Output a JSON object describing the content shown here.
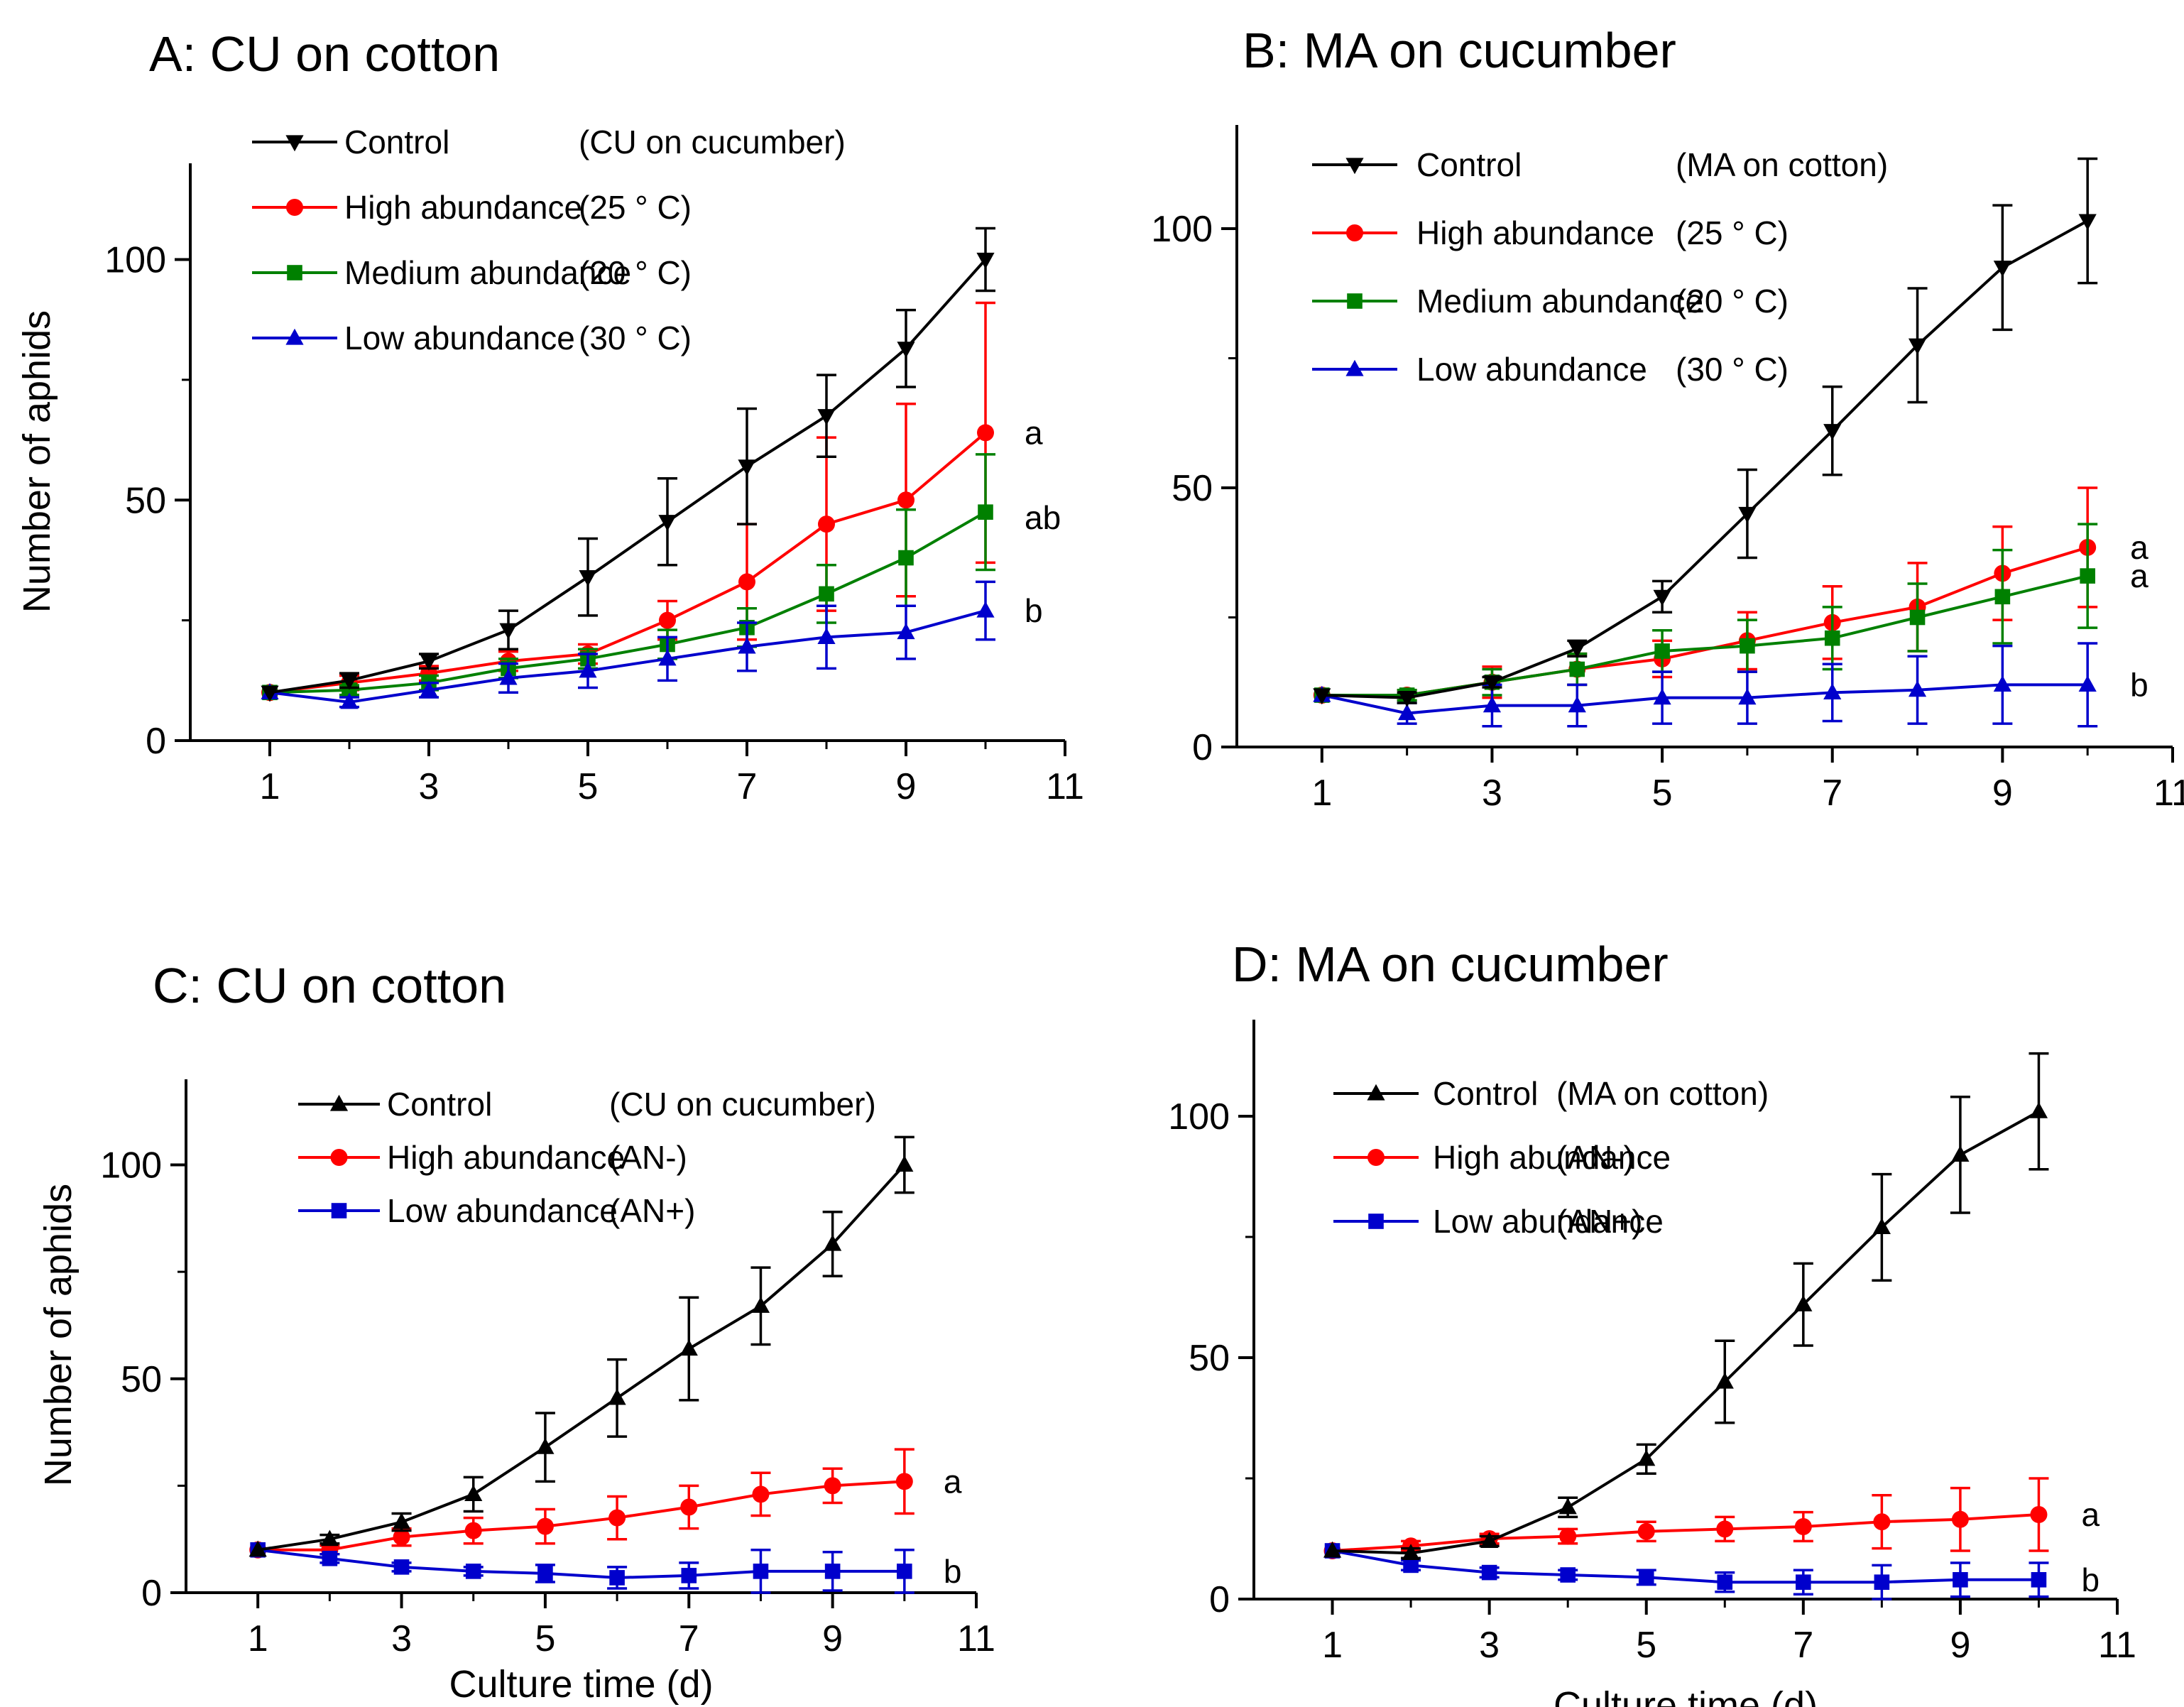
{
  "chart_data": [
    {
      "type": "line",
      "title": "A: CU on cotton",
      "xlabel": "",
      "ylabel": "Number of aphids",
      "xlim": [
        0,
        11
      ],
      "ylim": [
        0,
        120
      ],
      "xticks": [
        "1",
        "3",
        "5",
        "7",
        "9",
        "11"
      ],
      "yticks": [
        "0",
        "50",
        "100"
      ],
      "legend_position": "top-left",
      "x": [
        1,
        2,
        3,
        4,
        5,
        6,
        7,
        8,
        9,
        10
      ],
      "series": [
        {
          "name": "Control",
          "condition": "(CU on cucumber)",
          "color": "#000000",
          "marker": "triangle-down",
          "values": [
            10,
            12.5,
            16.5,
            23,
            34,
            45.5,
            57,
            67.5,
            81.5,
            100
          ],
          "errors": [
            0.5,
            1.5,
            1.5,
            4,
            8,
            9,
            12,
            8.5,
            8,
            6.5
          ]
        },
        {
          "name": "High abundance",
          "condition": "(25 ° C)",
          "color": "#ff0000",
          "marker": "circle",
          "values": [
            10,
            12,
            14,
            16.5,
            18,
            25,
            33,
            45,
            50,
            64
          ],
          "errors": [
            0.5,
            1.5,
            1.5,
            2,
            2,
            4,
            12,
            18,
            20,
            27
          ],
          "sig": "a"
        },
        {
          "name": "Medium abundance",
          "condition": "(20 ° C)",
          "color": "#008000",
          "marker": "square",
          "values": [
            10,
            10.5,
            12,
            15,
            17,
            20,
            23.5,
            30.5,
            38,
            47.5
          ],
          "errors": [
            0.5,
            1,
            1.5,
            2,
            2,
            3,
            4,
            6,
            10,
            12
          ],
          "sig": "ab"
        },
        {
          "name": "Low abundance",
          "condition": "(30 ° C)",
          "color": "#0000cc",
          "marker": "triangle-up",
          "values": [
            10,
            8,
            10.5,
            13,
            14.5,
            17,
            19.5,
            21.5,
            22.5,
            27
          ],
          "errors": [
            0.5,
            1,
            1.5,
            3,
            3.5,
            4.5,
            5,
            6.5,
            5.5,
            6
          ],
          "sig": "b"
        }
      ]
    },
    {
      "type": "line",
      "title": "B: MA on cucumber",
      "xlabel": "",
      "ylabel": "",
      "xlim": [
        0,
        11
      ],
      "ylim": [
        0,
        120
      ],
      "xticks": [
        "1",
        "3",
        "5",
        "7",
        "9",
        "11"
      ],
      "yticks": [
        "0",
        "50",
        "100"
      ],
      "legend_position": "top-left",
      "x": [
        1,
        2,
        3,
        4,
        5,
        6,
        7,
        8,
        9,
        10
      ],
      "series": [
        {
          "name": "Control",
          "condition": "(MA on cotton)",
          "color": "#000000",
          "marker": "triangle-down",
          "values": [
            10,
            9.5,
            12.5,
            19,
            29,
            45,
            61,
            77.5,
            92.5,
            101.5
          ],
          "errors": [
            0.5,
            1,
            1,
            1.5,
            3,
            8.5,
            8.5,
            11,
            12,
            12
          ]
        },
        {
          "name": "High abundance",
          "condition": "(25 ° C)",
          "color": "#ff0000",
          "marker": "circle",
          "values": [
            10,
            10,
            12.5,
            15,
            17,
            20.5,
            24,
            27,
            33.5,
            38.5
          ],
          "errors": [
            0.5,
            1,
            3,
            3,
            3.5,
            5.5,
            7,
            8.5,
            9,
            11.5
          ],
          "sig": "a"
        },
        {
          "name": "Medium abundance",
          "condition": "(20 ° C)",
          "color": "#008000",
          "marker": "square",
          "values": [
            10,
            10,
            12.5,
            15,
            18.5,
            19.5,
            21,
            25,
            29,
            33
          ],
          "errors": [
            0.5,
            1,
            2.5,
            3,
            4,
            5,
            6,
            6.5,
            9,
            10
          ],
          "sig": "a"
        },
        {
          "name": "Low abundance",
          "condition": "(30 ° C)",
          "color": "#0000cc",
          "marker": "triangle-up",
          "values": [
            10,
            6.5,
            8,
            8,
            9.5,
            9.5,
            10.5,
            11,
            12,
            12
          ],
          "errors": [
            0.5,
            2,
            4,
            4,
            5,
            5,
            5.5,
            6.5,
            7.5,
            8
          ],
          "sig": "b"
        }
      ]
    },
    {
      "type": "line",
      "title": "C: CU on cotton",
      "xlabel": "Culture time (d)",
      "ylabel": "Number of aphids",
      "xlim": [
        0,
        11
      ],
      "ylim": [
        0,
        120
      ],
      "xticks": [
        "1",
        "3",
        "5",
        "7",
        "9",
        "11"
      ],
      "yticks": [
        "0",
        "50",
        "100"
      ],
      "legend_position": "top-left",
      "x": [
        1,
        2,
        3,
        4,
        5,
        6,
        7,
        8,
        9,
        10
      ],
      "series": [
        {
          "name": "Control",
          "condition": "(CU on cucumber)",
          "color": "#000000",
          "marker": "triangle-up",
          "values": [
            10,
            12.5,
            16.5,
            23,
            34,
            45.5,
            57,
            67,
            81.5,
            100
          ],
          "errors": [
            0.5,
            1,
            2,
            4,
            8,
            9,
            12,
            9,
            7.5,
            6.5
          ]
        },
        {
          "name": "High abundance",
          "condition": "(AN-)",
          "color": "#ff0000",
          "marker": "circle",
          "values": [
            10,
            10,
            13,
            14.5,
            15.5,
            17.5,
            20,
            23,
            25,
            26
          ],
          "errors": [
            0.5,
            1,
            2,
            3,
            4,
            5,
            5,
            5,
            4,
            7.5
          ],
          "sig": "a"
        },
        {
          "name": "Low abundance",
          "condition": "(AN+)",
          "color": "#0000cc",
          "marker": "square",
          "values": [
            10,
            8,
            6,
            5,
            4.5,
            3.5,
            4,
            5,
            5,
            5
          ],
          "errors": [
            0.5,
            1,
            1,
            1,
            2,
            2.5,
            3,
            5,
            4.5,
            5
          ],
          "sig": "b"
        }
      ]
    },
    {
      "type": "line",
      "title": "D: MA on cucumber",
      "xlabel": "Culture time (d)",
      "ylabel": "",
      "xlim": [
        0,
        11
      ],
      "ylim": [
        0,
        120
      ],
      "xticks": [
        "1",
        "3",
        "5",
        "7",
        "9",
        "11"
      ],
      "yticks": [
        "0",
        "50",
        "100"
      ],
      "legend_position": "top-left",
      "x": [
        1,
        2,
        3,
        4,
        5,
        6,
        7,
        8,
        9,
        10
      ],
      "series": [
        {
          "name": "Control",
          "condition": "(MA on cotton)",
          "color": "#000000",
          "marker": "triangle-up",
          "values": [
            10,
            9.5,
            12,
            19,
            29,
            45,
            61,
            77,
            92,
            101
          ],
          "errors": [
            0.5,
            1,
            1,
            2,
            3,
            8.5,
            8.5,
            11,
            12,
            12
          ]
        },
        {
          "name": "High abundance",
          "condition": "(AN-)",
          "color": "#ff0000",
          "marker": "circle",
          "values": [
            10,
            11,
            12.5,
            13,
            14,
            14.5,
            15,
            16,
            16.5,
            17.5
          ],
          "errors": [
            0.5,
            1,
            1,
            1.5,
            2,
            2.5,
            3,
            5.5,
            6.5,
            7.5
          ],
          "sig": "a"
        },
        {
          "name": "Low abundance",
          "condition": "(AN+)",
          "color": "#0000cc",
          "marker": "square",
          "values": [
            10,
            7,
            5.5,
            5,
            4.5,
            3.5,
            3.5,
            3.5,
            4,
            4
          ],
          "errors": [
            0.5,
            1,
            1,
            1,
            1.5,
            2,
            2.5,
            3.5,
            3.5,
            3.5
          ],
          "sig": "b"
        }
      ]
    }
  ]
}
